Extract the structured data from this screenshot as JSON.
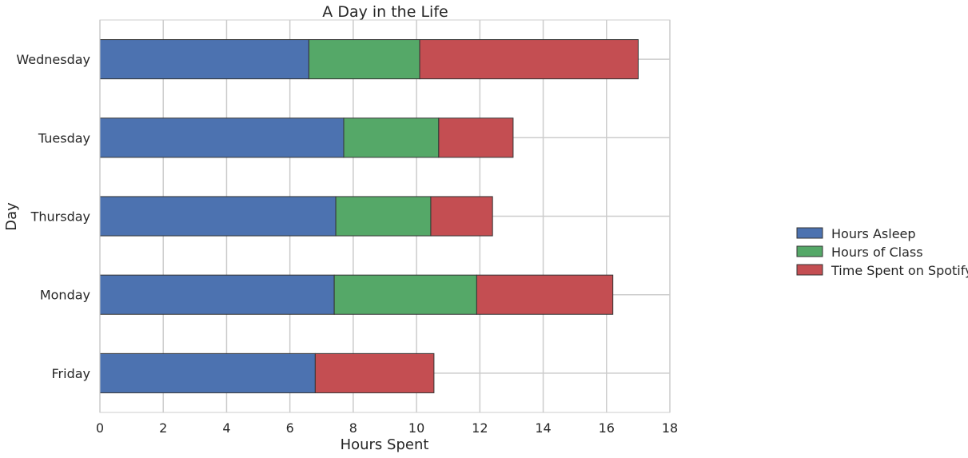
{
  "chart_data": {
    "type": "bar",
    "orientation": "horizontal",
    "stacked": true,
    "title": "A Day in the Life",
    "xlabel": "Hours Spent",
    "ylabel": "Day",
    "xlim": [
      0,
      18
    ],
    "xticks": [
      "0",
      "2",
      "4",
      "6",
      "8",
      "10",
      "12",
      "14",
      "16",
      "18"
    ],
    "categories": [
      "Friday",
      "Monday",
      "Thursday",
      "Tuesday",
      "Wednesday"
    ],
    "series": [
      {
        "name": "Hours Asleep",
        "color": "#4c72b0",
        "values": [
          6.8,
          7.4,
          7.45,
          7.7,
          6.6
        ]
      },
      {
        "name": "Hours of Class",
        "color": "#55a868",
        "values": [
          0,
          4.5,
          3.0,
          3.0,
          3.5
        ]
      },
      {
        "name": "Time Spent on Spotify",
        "color": "#c44e52",
        "values": [
          3.75,
          4.3,
          1.95,
          2.35,
          6.9
        ]
      }
    ],
    "grid": true,
    "legend_position": "right"
  }
}
